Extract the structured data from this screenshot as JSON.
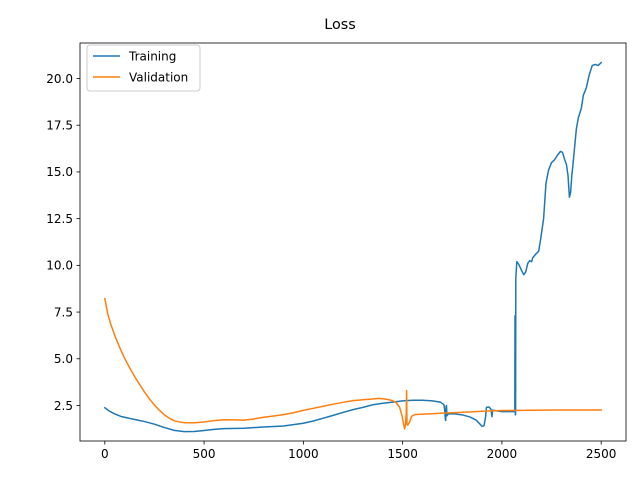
{
  "chart_data": {
    "type": "line",
    "title": "Loss",
    "xlabel": "",
    "ylabel": "",
    "xlim": [
      -125,
      2625
    ],
    "ylim": [
      0.6,
      21.9
    ],
    "xticks": [
      0,
      500,
      1000,
      1500,
      2000,
      2500
    ],
    "yticks": [
      2.5,
      5.0,
      7.5,
      10.0,
      12.5,
      15.0,
      17.5,
      20.0
    ],
    "grid": false,
    "legend_position": "top-left",
    "series": [
      {
        "name": "Training",
        "color": "#1f77b4",
        "points": [
          [
            0,
            2.38
          ],
          [
            20,
            2.22
          ],
          [
            50,
            2.05
          ],
          [
            80,
            1.92
          ],
          [
            120,
            1.82
          ],
          [
            160,
            1.73
          ],
          [
            200,
            1.64
          ],
          [
            250,
            1.5
          ],
          [
            300,
            1.32
          ],
          [
            350,
            1.17
          ],
          [
            400,
            1.1
          ],
          [
            450,
            1.11
          ],
          [
            500,
            1.16
          ],
          [
            550,
            1.22
          ],
          [
            600,
            1.26
          ],
          [
            700,
            1.28
          ],
          [
            800,
            1.35
          ],
          [
            900,
            1.4
          ],
          [
            1000,
            1.55
          ],
          [
            1050,
            1.67
          ],
          [
            1100,
            1.82
          ],
          [
            1150,
            1.97
          ],
          [
            1200,
            2.13
          ],
          [
            1250,
            2.28
          ],
          [
            1300,
            2.4
          ],
          [
            1350,
            2.54
          ],
          [
            1400,
            2.62
          ],
          [
            1450,
            2.68
          ],
          [
            1500,
            2.75
          ],
          [
            1550,
            2.78
          ],
          [
            1600,
            2.78
          ],
          [
            1650,
            2.75
          ],
          [
            1690,
            2.68
          ],
          [
            1708,
            2.55
          ],
          [
            1712,
            2.25
          ],
          [
            1715,
            1.78
          ],
          [
            1717,
            1.7
          ],
          [
            1719,
            2.45
          ],
          [
            1721,
            2.5
          ],
          [
            1723,
            1.95
          ],
          [
            1730,
            2.05
          ],
          [
            1760,
            2.05
          ],
          [
            1800,
            2.0
          ],
          [
            1840,
            1.88
          ],
          [
            1870,
            1.72
          ],
          [
            1890,
            1.5
          ],
          [
            1900,
            1.38
          ],
          [
            1910,
            1.42
          ],
          [
            1918,
            1.9
          ],
          [
            1922,
            2.4
          ],
          [
            1935,
            2.42
          ],
          [
            1945,
            2.3
          ],
          [
            1950,
            1.9
          ],
          [
            1953,
            2.25
          ],
          [
            1970,
            2.22
          ],
          [
            2000,
            2.17
          ],
          [
            2030,
            2.17
          ],
          [
            2060,
            2.17
          ],
          [
            2065,
            2.3
          ],
          [
            2066,
            7.3
          ],
          [
            2067,
            2.4
          ],
          [
            2068,
            2.0
          ],
          [
            2069,
            2.05
          ],
          [
            2070,
            9.3
          ],
          [
            2075,
            10.2
          ],
          [
            2085,
            10.05
          ],
          [
            2100,
            9.7
          ],
          [
            2110,
            9.5
          ],
          [
            2120,
            9.65
          ],
          [
            2130,
            10.1
          ],
          [
            2140,
            10.25
          ],
          [
            2150,
            10.2
          ],
          [
            2155,
            10.4
          ],
          [
            2170,
            10.6
          ],
          [
            2185,
            10.75
          ],
          [
            2195,
            11.4
          ],
          [
            2210,
            12.5
          ],
          [
            2222,
            14.4
          ],
          [
            2235,
            15.1
          ],
          [
            2250,
            15.5
          ],
          [
            2265,
            15.65
          ],
          [
            2280,
            15.9
          ],
          [
            2295,
            16.1
          ],
          [
            2305,
            16.05
          ],
          [
            2315,
            15.7
          ],
          [
            2325,
            15.4
          ],
          [
            2333,
            14.8
          ],
          [
            2340,
            13.65
          ],
          [
            2346,
            13.9
          ],
          [
            2352,
            14.8
          ],
          [
            2358,
            15.4
          ],
          [
            2365,
            16.2
          ],
          [
            2375,
            17.3
          ],
          [
            2385,
            17.9
          ],
          [
            2400,
            18.4
          ],
          [
            2410,
            19.1
          ],
          [
            2425,
            19.5
          ],
          [
            2440,
            20.2
          ],
          [
            2455,
            20.7
          ],
          [
            2470,
            20.75
          ],
          [
            2485,
            20.7
          ],
          [
            2500,
            20.85
          ]
        ]
      },
      {
        "name": "Validation",
        "color": "#ff7f0e",
        "points": [
          [
            0,
            8.22
          ],
          [
            15,
            7.4
          ],
          [
            30,
            6.85
          ],
          [
            50,
            6.25
          ],
          [
            75,
            5.6
          ],
          [
            100,
            5.02
          ],
          [
            125,
            4.52
          ],
          [
            150,
            4.05
          ],
          [
            175,
            3.63
          ],
          [
            200,
            3.22
          ],
          [
            225,
            2.85
          ],
          [
            250,
            2.52
          ],
          [
            275,
            2.24
          ],
          [
            300,
            2.0
          ],
          [
            325,
            1.82
          ],
          [
            350,
            1.68
          ],
          [
            375,
            1.62
          ],
          [
            400,
            1.58
          ],
          [
            450,
            1.58
          ],
          [
            500,
            1.62
          ],
          [
            550,
            1.69
          ],
          [
            600,
            1.74
          ],
          [
            650,
            1.73
          ],
          [
            700,
            1.72
          ],
          [
            750,
            1.78
          ],
          [
            800,
            1.87
          ],
          [
            850,
            1.94
          ],
          [
            900,
            2.01
          ],
          [
            950,
            2.11
          ],
          [
            1000,
            2.24
          ],
          [
            1050,
            2.35
          ],
          [
            1100,
            2.46
          ],
          [
            1150,
            2.57
          ],
          [
            1200,
            2.67
          ],
          [
            1250,
            2.76
          ],
          [
            1300,
            2.81
          ],
          [
            1350,
            2.85
          ],
          [
            1380,
            2.88
          ],
          [
            1410,
            2.85
          ],
          [
            1440,
            2.79
          ],
          [
            1465,
            2.68
          ],
          [
            1485,
            2.4
          ],
          [
            1497,
            1.95
          ],
          [
            1504,
            1.55
          ],
          [
            1510,
            1.25
          ],
          [
            1514,
            1.45
          ],
          [
            1516,
            1.8
          ],
          [
            1518,
            2.0
          ],
          [
            1520,
            3.3
          ],
          [
            1522,
            1.5
          ],
          [
            1526,
            1.45
          ],
          [
            1535,
            1.62
          ],
          [
            1545,
            1.92
          ],
          [
            1560,
            2.01
          ],
          [
            1600,
            2.04
          ],
          [
            1650,
            2.06
          ],
          [
            1700,
            2.09
          ],
          [
            1750,
            2.11
          ],
          [
            1800,
            2.14
          ],
          [
            1850,
            2.16
          ],
          [
            1900,
            2.19
          ],
          [
            1950,
            2.21
          ],
          [
            2000,
            2.23
          ],
          [
            2100,
            2.24
          ],
          [
            2200,
            2.25
          ],
          [
            2300,
            2.26
          ],
          [
            2400,
            2.26
          ],
          [
            2500,
            2.26
          ]
        ]
      }
    ]
  }
}
